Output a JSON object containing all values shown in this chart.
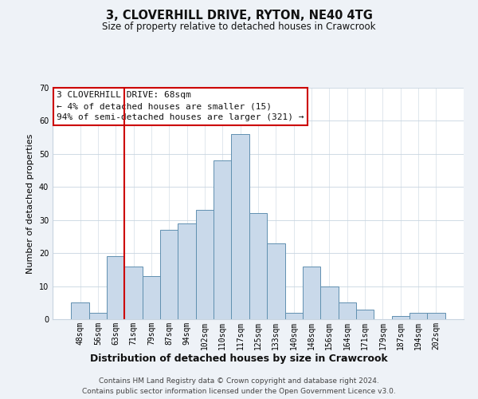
{
  "title": "3, CLOVERHILL DRIVE, RYTON, NE40 4TG",
  "subtitle": "Size of property relative to detached houses in Crawcrook",
  "xlabel": "Distribution of detached houses by size in Crawcrook",
  "ylabel": "Number of detached properties",
  "bar_labels": [
    "48sqm",
    "56sqm",
    "63sqm",
    "71sqm",
    "79sqm",
    "87sqm",
    "94sqm",
    "102sqm",
    "110sqm",
    "117sqm",
    "125sqm",
    "133sqm",
    "140sqm",
    "148sqm",
    "156sqm",
    "164sqm",
    "171sqm",
    "179sqm",
    "187sqm",
    "194sqm",
    "202sqm"
  ],
  "bar_values": [
    5,
    2,
    19,
    16,
    13,
    27,
    29,
    33,
    48,
    56,
    32,
    23,
    2,
    16,
    10,
    5,
    3,
    0,
    1,
    2,
    2
  ],
  "bar_color": "#c9d9ea",
  "bar_edge_color": "#6090b0",
  "vline_color": "#cc0000",
  "vline_x_idx": 3,
  "ylim": [
    0,
    70
  ],
  "yticks": [
    0,
    10,
    20,
    30,
    40,
    50,
    60,
    70
  ],
  "annotation_text_line1": "3 CLOVERHILL DRIVE: 68sqm",
  "annotation_text_line2": "← 4% of detached houses are smaller (15)",
  "annotation_text_line3": "94% of semi-detached houses are larger (321) →",
  "footer_line1": "Contains HM Land Registry data © Crown copyright and database right 2024.",
  "footer_line2": "Contains public sector information licensed under the Open Government Licence v3.0.",
  "background_color": "#eef2f7",
  "plot_background": "#ffffff",
  "grid_color": "#c8d4e0",
  "title_fontsize": 10.5,
  "subtitle_fontsize": 8.5,
  "ylabel_fontsize": 8,
  "xlabel_fontsize": 9,
  "tick_fontsize": 7,
  "annotation_fontsize": 8,
  "footer_fontsize": 6.5
}
